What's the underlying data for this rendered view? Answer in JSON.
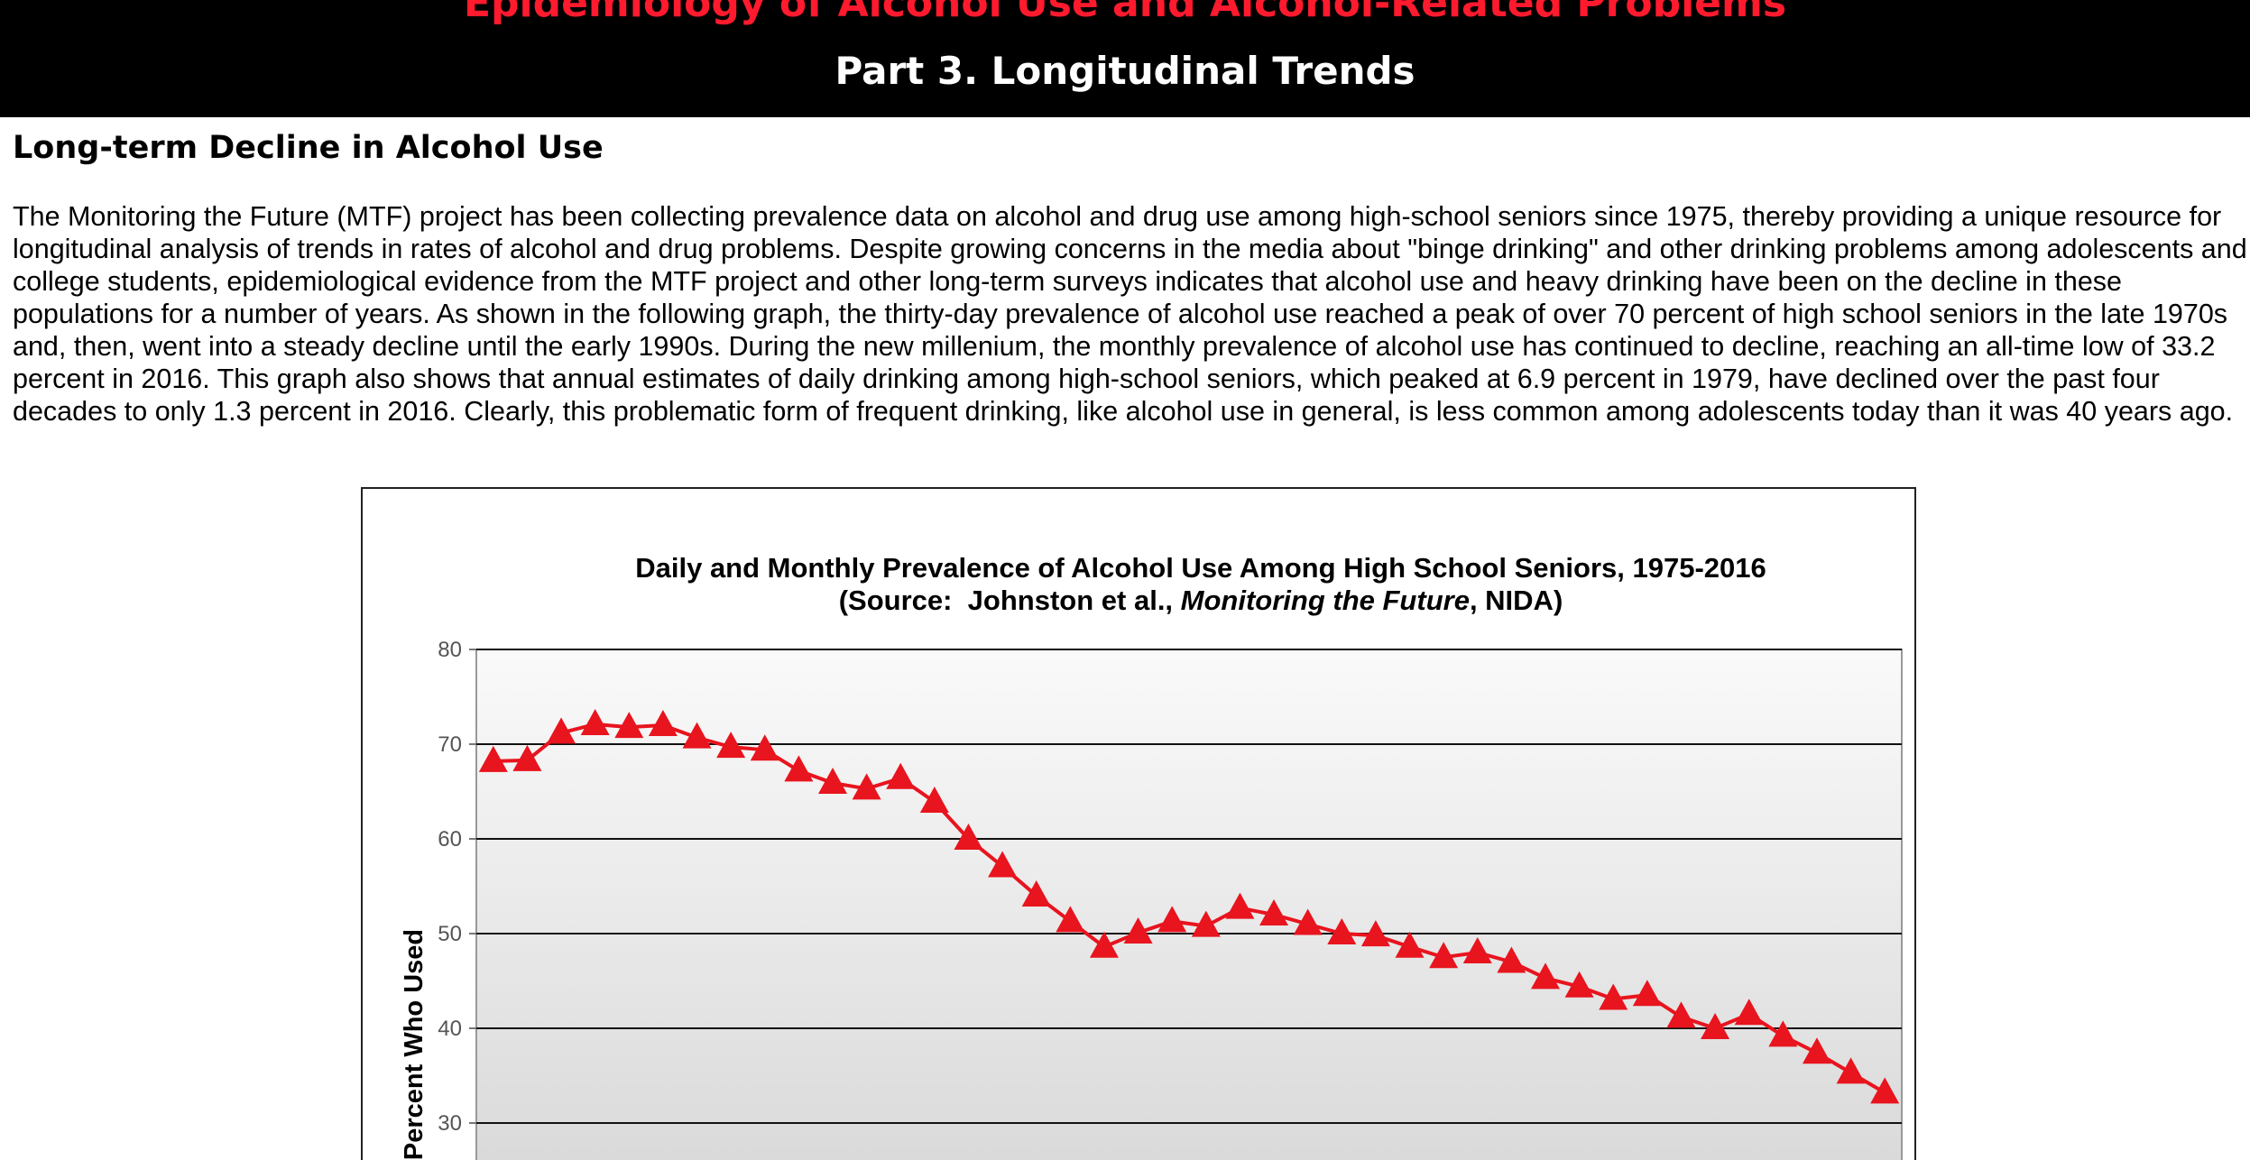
{
  "header": {
    "title": "Epidemiology of Alcohol Use and Alcohol-Related Problems",
    "subtitle": "Part 3. Longitudinal Trends"
  },
  "section": {
    "heading": "Long-term Decline in Alcohol Use",
    "paragraph": "The Monitoring the Future (MTF) project has been collecting prevalence data on alcohol and drug use among high-school seniors since 1975, thereby providing a unique resource for longitudinal analysis of trends in rates of alcohol and drug problems. Despite growing concerns in the media about \"binge drinking\" and other drinking problems among adolescents and college students, epidemiological evidence from the MTF project and other long-term surveys indicates that alcohol use and heavy drinking have been on the decline in these populations for a number of years. As shown in the following graph, the thirty-day prevalence of alcohol use reached a peak of over 70 percent of high school seniors in the late 1970s and, then, went into a steady decline until the early 1990s. During the new millenium, the monthly prevalence of alcohol use has continued to decline, reaching an all-time low of 33.2 percent in 2016. This graph also shows that annual estimates of daily drinking among high-school seniors, which peaked at 6.9 percent in 1979, have declined over the past four decades to only 1.3 percent in 2016. Clearly, this problematic form of frequent drinking, like alcohol use in general, is less common among adolescents today than it was 40 years ago."
  },
  "chart_data": {
    "type": "line",
    "title": "Daily and Monthly Prevalence of Alcohol Use Among High School Seniors, 1975-2016",
    "subtitle": [
      "(Source:  Johnston et al., ",
      "Monitoring the Future",
      ", NIDA)"
    ],
    "ylabel": "Percent Who Used",
    "ylim": [
      0,
      80
    ],
    "yticks": [
      30,
      40,
      50,
      60,
      70,
      80
    ],
    "grid": true,
    "color": "#e8141e",
    "values": [
      68.2,
      68.3,
      71.2,
      72.1,
      71.8,
      72.0,
      70.7,
      69.7,
      69.4,
      67.2,
      65.9,
      65.3,
      66.4,
      63.9,
      60.0,
      57.1,
      54.0,
      51.3,
      48.6,
      50.1,
      51.3,
      50.8,
      52.7,
      52.0,
      51.0,
      50.0,
      49.8,
      48.6,
      47.5,
      48.0,
      47.0,
      45.3,
      44.4,
      43.1,
      43.5,
      41.2,
      40.0,
      41.5,
      39.2,
      37.4,
      35.3,
      33.2
    ]
  }
}
